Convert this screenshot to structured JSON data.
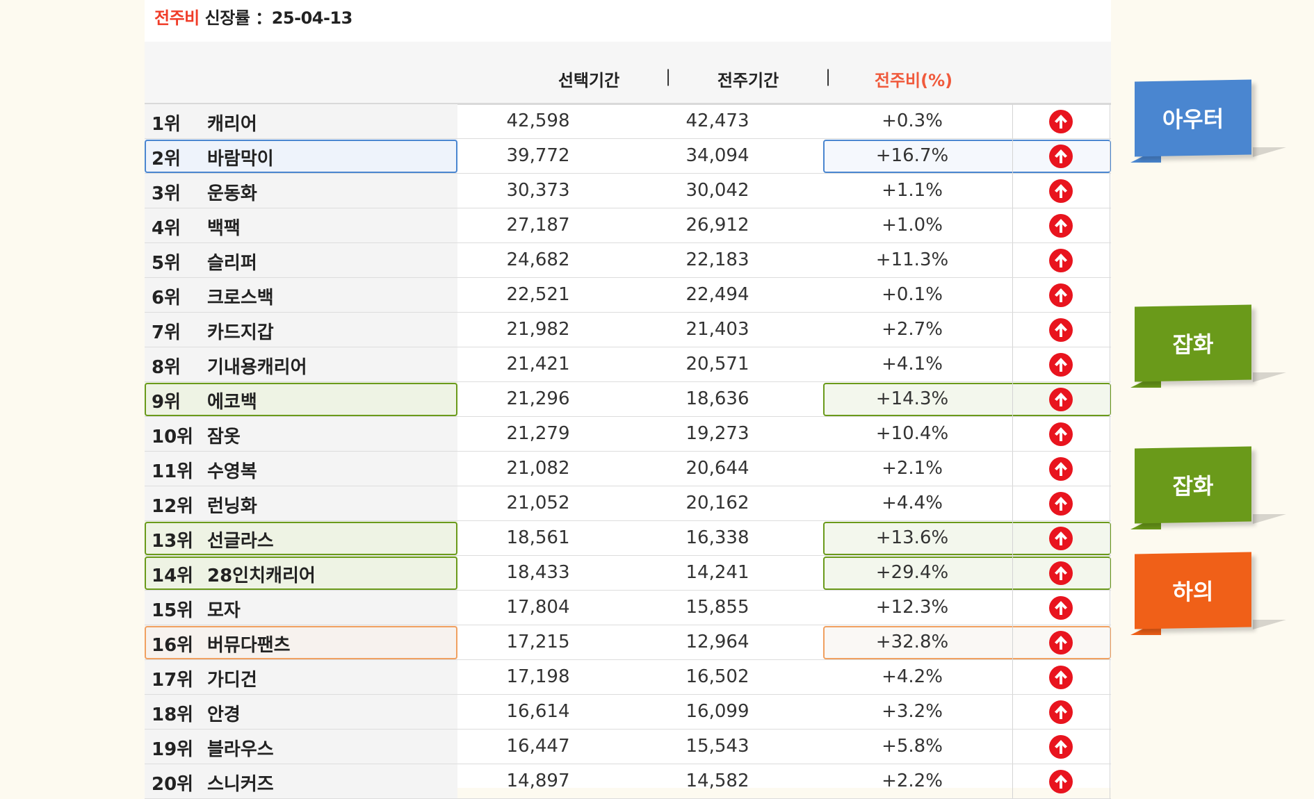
{
  "title": {
    "prefix": "전주비",
    "label": "신장률",
    "date": "：25-04-13"
  },
  "columns": {
    "selected": "선택기간",
    "previous": "전주기간",
    "ratio": "전주비(%)",
    "sep": "|"
  },
  "rows": [
    {
      "rank": "1위",
      "name": "캐리어",
      "selected": "42,598",
      "previous": "42,473",
      "ratio": "+0.3%",
      "highlight": ""
    },
    {
      "rank": "2위",
      "name": "바람막이",
      "selected": "39,772",
      "previous": "34,094",
      "ratio": "+16.7%",
      "highlight": "blue"
    },
    {
      "rank": "3위",
      "name": "운동화",
      "selected": "30,373",
      "previous": "30,042",
      "ratio": "+1.1%",
      "highlight": ""
    },
    {
      "rank": "4위",
      "name": "백팩",
      "selected": "27,187",
      "previous": "26,912",
      "ratio": "+1.0%",
      "highlight": ""
    },
    {
      "rank": "5위",
      "name": "슬리퍼",
      "selected": "24,682",
      "previous": "22,183",
      "ratio": "+11.3%",
      "highlight": ""
    },
    {
      "rank": "6위",
      "name": "크로스백",
      "selected": "22,521",
      "previous": "22,494",
      "ratio": "+0.1%",
      "highlight": ""
    },
    {
      "rank": "7위",
      "name": "카드지갑",
      "selected": "21,982",
      "previous": "21,403",
      "ratio": "+2.7%",
      "highlight": ""
    },
    {
      "rank": "8위",
      "name": "기내용캐리어",
      "selected": "21,421",
      "previous": "20,571",
      "ratio": "+4.1%",
      "highlight": ""
    },
    {
      "rank": "9위",
      "name": "에코백",
      "selected": "21,296",
      "previous": "18,636",
      "ratio": "+14.3%",
      "highlight": "green"
    },
    {
      "rank": "10위",
      "name": "잠옷",
      "selected": "21,279",
      "previous": "19,273",
      "ratio": "+10.4%",
      "highlight": ""
    },
    {
      "rank": "11위",
      "name": "수영복",
      "selected": "21,082",
      "previous": "20,644",
      "ratio": "+2.1%",
      "highlight": ""
    },
    {
      "rank": "12위",
      "name": "런닝화",
      "selected": "21,052",
      "previous": "20,162",
      "ratio": "+4.4%",
      "highlight": ""
    },
    {
      "rank": "13위",
      "name": "선글라스",
      "selected": "18,561",
      "previous": "16,338",
      "ratio": "+13.6%",
      "highlight": "green"
    },
    {
      "rank": "14위",
      "name": "28인치캐리어",
      "selected": "18,433",
      "previous": "14,241",
      "ratio": "+29.4%",
      "highlight": "green"
    },
    {
      "rank": "15위",
      "name": "모자",
      "selected": "17,804",
      "previous": "15,855",
      "ratio": "+12.3%",
      "highlight": ""
    },
    {
      "rank": "16위",
      "name": "버뮤다팬츠",
      "selected": "17,215",
      "previous": "12,964",
      "ratio": "+32.8%",
      "highlight": "orange"
    },
    {
      "rank": "17위",
      "name": "가디건",
      "selected": "17,198",
      "previous": "16,502",
      "ratio": "+4.2%",
      "highlight": ""
    },
    {
      "rank": "18위",
      "name": "안경",
      "selected": "16,614",
      "previous": "16,099",
      "ratio": "+3.2%",
      "highlight": ""
    },
    {
      "rank": "19위",
      "name": "블라우스",
      "selected": "16,447",
      "previous": "15,543",
      "ratio": "+5.8%",
      "highlight": ""
    },
    {
      "rank": "20위",
      "name": "스니커즈",
      "selected": "14,897",
      "previous": "14,582",
      "ratio": "+2.2%",
      "highlight": ""
    }
  ],
  "callouts": [
    {
      "label": "아우터",
      "color": "#4a86d0"
    },
    {
      "label": "잡화",
      "color": "#6a9a1a"
    },
    {
      "label": "잡화",
      "color": "#6a9a1a"
    },
    {
      "label": "하의",
      "color": "#f06018"
    }
  ],
  "colors": {
    "blue": "#4a86d0",
    "green": "#6a9a1a",
    "orange": "#f0a060",
    "up_arrow": "#e8141e",
    "accent": "#f03c28"
  },
  "icons": {
    "trend": "up-arrow-circle-icon"
  }
}
